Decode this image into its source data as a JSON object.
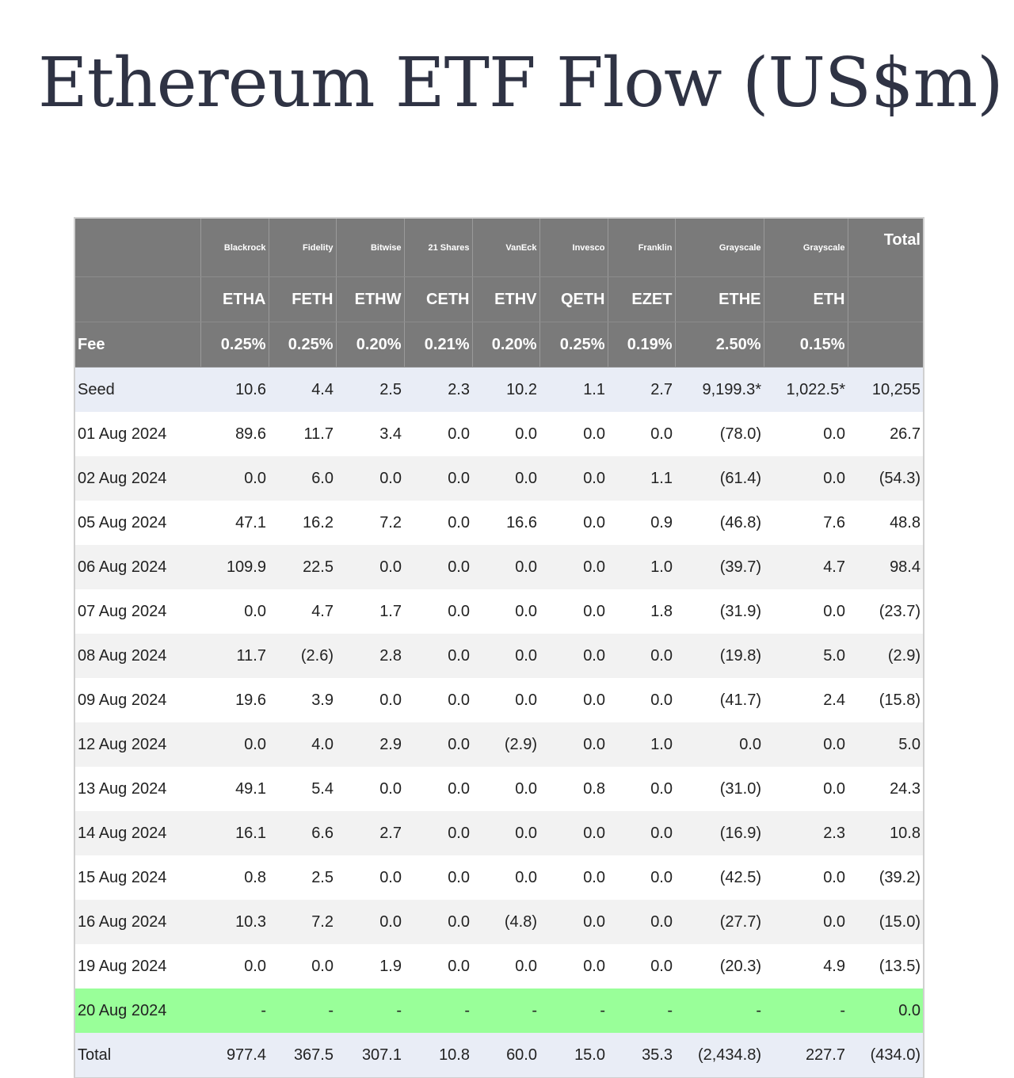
{
  "title": "Ethereum ETF Flow (US$m)",
  "accent_colors": {
    "header_bg": "#7a7a7a",
    "negative_text": "#c62828",
    "highlight_row": "#99ff99",
    "seed_total_row": "#e9edf6"
  },
  "table": {
    "issuers": [
      "",
      "Blackrock",
      "Fidelity",
      "Bitwise",
      "21 Shares",
      "VanEck",
      "Invesco",
      "Franklin",
      "Grayscale",
      "Grayscale",
      "Total"
    ],
    "tickers": [
      "",
      "ETHA",
      "FETH",
      "ETHW",
      "CETH",
      "ETHV",
      "QETH",
      "EZET",
      "ETHE",
      "ETH",
      ""
    ],
    "fees": [
      "Fee",
      "0.25%",
      "0.25%",
      "0.20%",
      "0.21%",
      "0.20%",
      "0.25%",
      "0.19%",
      "2.50%",
      "0.15%",
      ""
    ],
    "rows": [
      [
        "Seed",
        "10.6",
        "4.4",
        "2.5",
        "2.3",
        "10.2",
        "1.1",
        "2.7",
        "9,199.3*",
        "1,022.5*",
        "10,255"
      ],
      [
        "01 Aug 2024",
        "89.6",
        "11.7",
        "3.4",
        "0.0",
        "0.0",
        "0.0",
        "0.0",
        "(78.0)",
        "0.0",
        "26.7"
      ],
      [
        "02 Aug 2024",
        "0.0",
        "6.0",
        "0.0",
        "0.0",
        "0.0",
        "0.0",
        "1.1",
        "(61.4)",
        "0.0",
        "(54.3)"
      ],
      [
        "05 Aug 2024",
        "47.1",
        "16.2",
        "7.2",
        "0.0",
        "16.6",
        "0.0",
        "0.9",
        "(46.8)",
        "7.6",
        "48.8"
      ],
      [
        "06 Aug 2024",
        "109.9",
        "22.5",
        "0.0",
        "0.0",
        "0.0",
        "0.0",
        "1.0",
        "(39.7)",
        "4.7",
        "98.4"
      ],
      [
        "07 Aug 2024",
        "0.0",
        "4.7",
        "1.7",
        "0.0",
        "0.0",
        "0.0",
        "1.8",
        "(31.9)",
        "0.0",
        "(23.7)"
      ],
      [
        "08 Aug 2024",
        "11.7",
        "(2.6)",
        "2.8",
        "0.0",
        "0.0",
        "0.0",
        "0.0",
        "(19.8)",
        "5.0",
        "(2.9)"
      ],
      [
        "09 Aug 2024",
        "19.6",
        "3.9",
        "0.0",
        "0.0",
        "0.0",
        "0.0",
        "0.0",
        "(41.7)",
        "2.4",
        "(15.8)"
      ],
      [
        "12 Aug 2024",
        "0.0",
        "4.0",
        "2.9",
        "0.0",
        "(2.9)",
        "0.0",
        "1.0",
        "0.0",
        "0.0",
        "5.0"
      ],
      [
        "13 Aug 2024",
        "49.1",
        "5.4",
        "0.0",
        "0.0",
        "0.0",
        "0.8",
        "0.0",
        "(31.0)",
        "0.0",
        "24.3"
      ],
      [
        "14 Aug 2024",
        "16.1",
        "6.6",
        "2.7",
        "0.0",
        "0.0",
        "0.0",
        "0.0",
        "(16.9)",
        "2.3",
        "10.8"
      ],
      [
        "15 Aug 2024",
        "0.8",
        "2.5",
        "0.0",
        "0.0",
        "0.0",
        "0.0",
        "0.0",
        "(42.5)",
        "0.0",
        "(39.2)"
      ],
      [
        "16 Aug 2024",
        "10.3",
        "7.2",
        "0.0",
        "0.0",
        "(4.8)",
        "0.0",
        "0.0",
        "(27.7)",
        "0.0",
        "(15.0)"
      ],
      [
        "19 Aug 2024",
        "0.0",
        "0.0",
        "1.9",
        "0.0",
        "0.0",
        "0.0",
        "0.0",
        "(20.3)",
        "4.9",
        "(13.5)"
      ],
      [
        "20 Aug 2024",
        "-",
        "-",
        "-",
        "-",
        "-",
        "-",
        "-",
        "-",
        "-",
        "0.0"
      ],
      [
        "Total",
        "977.4",
        "367.5",
        "307.1",
        "10.8",
        "60.0",
        "15.0",
        "35.3",
        "(2,434.8)",
        "227.7",
        "(434.0)"
      ]
    ]
  }
}
